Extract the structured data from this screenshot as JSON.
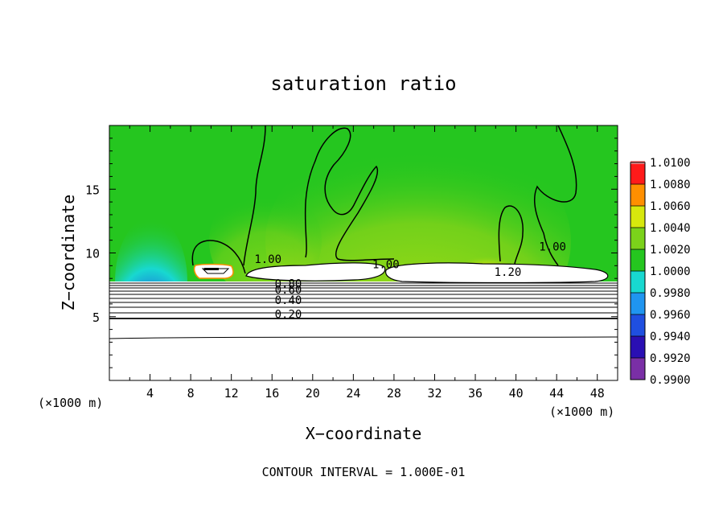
{
  "chart_data": {
    "type": "heatmap",
    "title": "saturation ratio",
    "xlabel": "X−coordinate",
    "ylabel": "Z−coordinate",
    "x_unit_left": "(×1000 m)",
    "x_unit_right": "(×1000 m)",
    "xlim": [
      0,
      50
    ],
    "ylim": [
      0,
      20
    ],
    "x_ticks": [
      4,
      8,
      12,
      16,
      20,
      24,
      28,
      32,
      36,
      40,
      44,
      48
    ],
    "y_ticks": [
      5,
      10,
      15
    ],
    "colorbar": {
      "levels": [
        "0.9900",
        "0.9920",
        "0.9940",
        "0.9960",
        "0.9980",
        "1.0000",
        "1.0020",
        "1.0040",
        "1.0060",
        "1.0080",
        "1.0100"
      ],
      "colors": [
        "#7a2fa6",
        "#2a0fb3",
        "#1f4fe0",
        "#1f95f0",
        "#18d8d0",
        "#25c61f",
        "#7bd21a",
        "#d7e80d",
        "#ff8f00",
        "#ff1a1a",
        "#f48c8c"
      ]
    },
    "contour_labels": [
      {
        "text": "1.00",
        "x": 15.6,
        "y": 9.2
      },
      {
        "text": "1.00",
        "x": 43.6,
        "y": 10.2
      },
      {
        "text": "1.00",
        "x": 27.2,
        "y": 8.8
      },
      {
        "text": "1.20",
        "x": 39.2,
        "y": 8.2
      },
      {
        "text": "0.80",
        "x": 17.6,
        "y": 7.3
      },
      {
        "text": "0.60",
        "x": 17.6,
        "y": 6.8
      },
      {
        "text": "0.40",
        "x": 17.6,
        "y": 6.0
      },
      {
        "text": "0.20",
        "x": 17.6,
        "y": 4.9
      }
    ],
    "contour_levels_shown": [
      0.2,
      0.4,
      0.6,
      0.8,
      1.0,
      1.2
    ],
    "footer": "CONTOUR INTERVAL =  1.000E-01"
  }
}
